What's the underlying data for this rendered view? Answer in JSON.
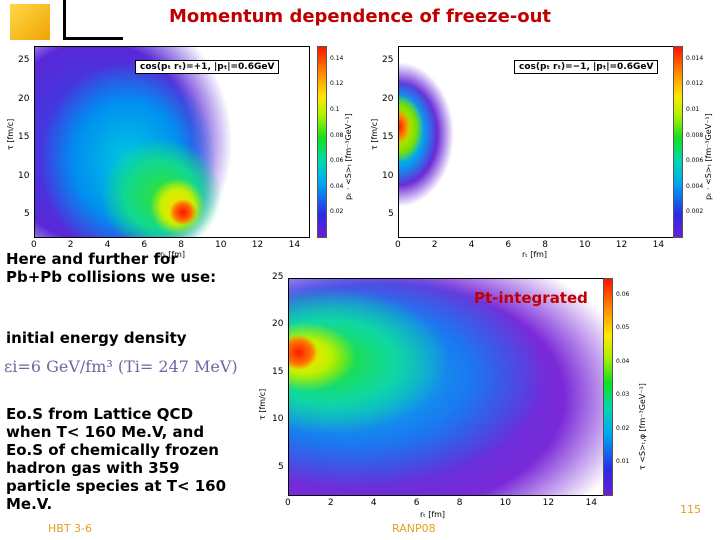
{
  "slide": {
    "title": "Momentum dependence of freeze-out",
    "intro": [
      "Here and further for",
      "Pb+Pb collisions we use:"
    ],
    "initial_energy": "initial energy density",
    "energy_formula": "εi=6 GeV/fm³ (Ti= 247 MeV)",
    "eos_text": [
      "Eo.S from Lattice QCD",
      "when T< 160 Me.V, and",
      "Eo.S of chemically frozen",
      "hadron gas with 359",
      "particle species at T< 160",
      "Me.V."
    ],
    "footer_left": "HBT 3-6",
    "footer_center": "RANP08",
    "page_number": "115"
  },
  "plots": [
    {
      "id": "plot-top-left",
      "legend": "cos(pₜ rₜ)=+1, |pₜ|=0.6GeV",
      "x_label": "rₜ [fm]",
      "y_label": "τ [fm/c]",
      "cbar_label": "pₜ · <S>ₜ [fm⁻³GeV⁻¹]",
      "x_ticks": [
        "0",
        "2",
        "4",
        "6",
        "8",
        "10",
        "12",
        "14"
      ],
      "y_ticks": [
        "5",
        "10",
        "15",
        "20",
        "25"
      ],
      "cbar_ticks": [
        "0.14",
        "0.12",
        "0.1",
        "0.08",
        "0.06",
        "0.04",
        "0.02"
      ]
    },
    {
      "id": "plot-top-right",
      "legend": "cos(pₜ rₜ)=−1, |pₜ|=0.6GeV",
      "x_label": "rₜ [fm]",
      "y_label": "τ [fm/c]",
      "cbar_label": "pₜ · <S>ₜ [fm⁻³GeV⁻¹]",
      "x_ticks": [
        "0",
        "2",
        "4",
        "6",
        "8",
        "10",
        "12",
        "14"
      ],
      "y_ticks": [
        "5",
        "10",
        "15",
        "20",
        "25"
      ],
      "cbar_ticks": [
        "0.014",
        "0.012",
        "0.01",
        "0.008",
        "0.006",
        "0.004",
        "0.002"
      ]
    },
    {
      "id": "plot-bottom",
      "legend": "Pt-integrated",
      "x_label": "rₜ [fm]",
      "y_label": "τ [fm/c]",
      "cbar_label": "τ <S>ₜ,φ [fm⁻³GeV⁻¹]",
      "x_ticks": [
        "0",
        "2",
        "4",
        "6",
        "8",
        "10",
        "12",
        "14"
      ],
      "y_ticks": [
        "5",
        "10",
        "15",
        "20",
        "25"
      ],
      "cbar_ticks": [
        "0.06",
        "0.05",
        "0.04",
        "0.03",
        "0.02",
        "0.01"
      ]
    }
  ],
  "colors": {
    "title": "#c00000",
    "footer": "#e0a020",
    "energy_formula": "#6a6aa0"
  }
}
